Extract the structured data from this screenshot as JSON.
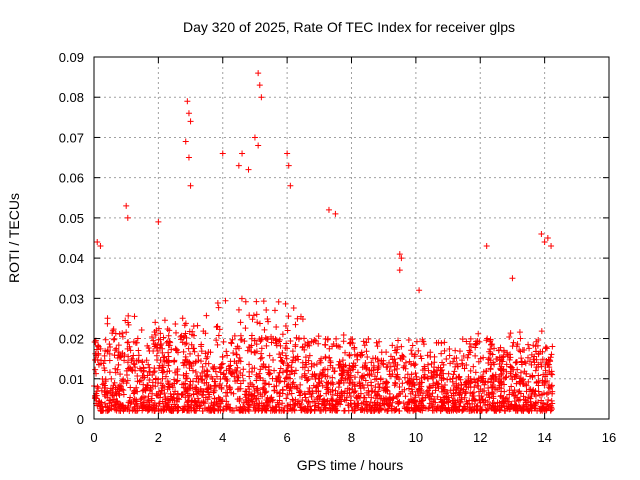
{
  "chart_data": {
    "type": "scatter",
    "title": "Day 320 of 2025, Rate Of TEC Index for receiver glps",
    "xlabel": "GPS time / hours",
    "ylabel": "ROTI / TECUs",
    "xlim": [
      0,
      16
    ],
    "ylim": [
      0,
      0.09
    ],
    "xticks": [
      0,
      2,
      4,
      6,
      8,
      10,
      12,
      14,
      16
    ],
    "xtick_labels": [
      "0",
      "2",
      "4",
      "6",
      "8",
      "10",
      "12",
      "14",
      "16"
    ],
    "yticks": [
      0,
      0.01,
      0.02,
      0.03,
      0.04,
      0.05,
      0.06,
      0.07,
      0.08,
      0.09
    ],
    "ytick_labels": [
      "0",
      "0.01",
      "0.02",
      "0.03",
      "0.04",
      "0.05",
      "0.06",
      "0.07",
      "0.08",
      "0.09"
    ],
    "grid": true,
    "marker": "plus",
    "marker_color": "#ff0000",
    "series": [
      {
        "name": "ROTI",
        "x_range": [
          0,
          14.25
        ],
        "baseline_range": [
          0.002,
          0.02
        ],
        "notable_points": [
          [
            0.1,
            0.044
          ],
          [
            0.2,
            0.043
          ],
          [
            1.0,
            0.053
          ],
          [
            1.05,
            0.05
          ],
          [
            2.0,
            0.049
          ],
          [
            2.9,
            0.079
          ],
          [
            2.95,
            0.076
          ],
          [
            3.0,
            0.074
          ],
          [
            2.85,
            0.069
          ],
          [
            2.95,
            0.065
          ],
          [
            3.0,
            0.058
          ],
          [
            4.0,
            0.066
          ],
          [
            4.5,
            0.063
          ],
          [
            4.6,
            0.066
          ],
          [
            4.8,
            0.062
          ],
          [
            5.0,
            0.07
          ],
          [
            5.1,
            0.086
          ],
          [
            5.15,
            0.083
          ],
          [
            5.2,
            0.08
          ],
          [
            5.1,
            0.068
          ],
          [
            6.0,
            0.066
          ],
          [
            6.05,
            0.063
          ],
          [
            6.1,
            0.058
          ],
          [
            7.3,
            0.052
          ],
          [
            7.5,
            0.051
          ],
          [
            9.5,
            0.041
          ],
          [
            9.55,
            0.04
          ],
          [
            9.5,
            0.037
          ],
          [
            10.1,
            0.032
          ],
          [
            12.2,
            0.043
          ],
          [
            13.0,
            0.035
          ],
          [
            13.9,
            0.046
          ],
          [
            14.0,
            0.044
          ],
          [
            14.1,
            0.045
          ],
          [
            14.2,
            0.043
          ]
        ]
      }
    ]
  }
}
